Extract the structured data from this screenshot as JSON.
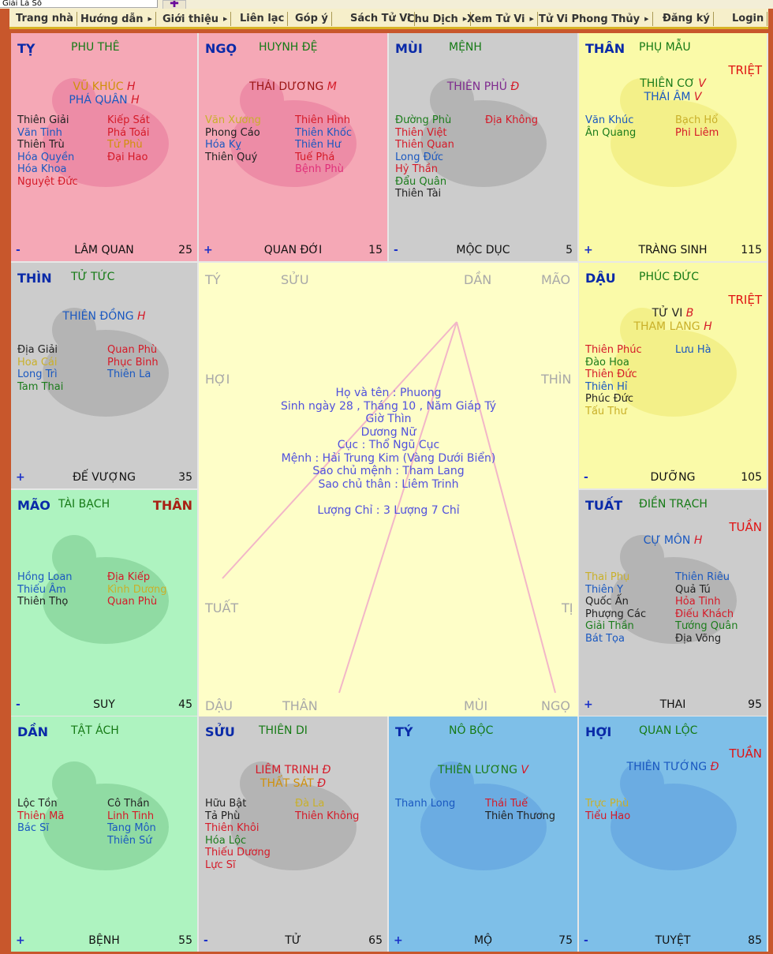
{
  "browser": {
    "tab_text": "Giải Lá Số",
    "new_tab": "✚"
  },
  "menu": [
    {
      "label": "Trang nhà",
      "arrow": false
    },
    {
      "label": "Hướng dẫn",
      "arrow": true
    },
    {
      "label": "Giới thiệu",
      "arrow": true
    },
    {
      "label": "Liên lạc",
      "arrow": false
    },
    {
      "label": "Góp ý",
      "arrow": false
    },
    {
      "label": "Sách Tử Vi",
      "arrow": false
    },
    {
      "label": "Chu Dịch",
      "arrow": true
    },
    {
      "label": "Xem Tử Vi",
      "arrow": true
    },
    {
      "label": "Tử Vi Phong Thủy",
      "arrow": true
    },
    {
      "label": "Đăng ký",
      "arrow": false
    },
    {
      "label": "Login",
      "arrow": false
    }
  ],
  "cells": [
    {
      "name": "TỴ",
      "title": "PHU THÊ",
      "special": "",
      "main": [
        {
          "t": "VŨ KHÚC",
          "m": "H",
          "c": "org"
        },
        {
          "t": "PHÁ QUÂN",
          "m": "H",
          "c": "blu"
        }
      ],
      "left": [
        {
          "t": "Thiên Giải",
          "c": "blk"
        },
        {
          "t": "Văn Tinh",
          "c": "blu"
        },
        {
          "t": "Thiên Trù",
          "c": "blk"
        },
        {
          "t": "Hóa Quyền",
          "c": "blu"
        },
        {
          "t": "Hóa Khoa",
          "c": "blu"
        },
        {
          "t": "Nguyệt Đức",
          "c": "red"
        }
      ],
      "right": [
        {
          "t": "Kiếp Sát",
          "c": "red"
        },
        {
          "t": "Phá Toái",
          "c": "red"
        },
        {
          "t": "Tử Phù",
          "c": "org"
        },
        {
          "t": "Đại Hao",
          "c": "red"
        }
      ],
      "sign": "-",
      "phase": "LÂM QUAN",
      "age": "25"
    },
    {
      "name": "NGỌ",
      "title": "HUYNH ĐỆ",
      "special": "",
      "main": [
        {
          "t": "THÁI DƯƠNG",
          "m": "M",
          "c": "dred"
        }
      ],
      "left": [
        {
          "t": "Văn Xương",
          "c": "ylw"
        },
        {
          "t": "Phong Cáo",
          "c": "blk"
        },
        {
          "t": "Hóa Kỵ",
          "c": "blu"
        },
        {
          "t": "Thiên Quý",
          "c": "blk"
        }
      ],
      "right": [
        {
          "t": "Thiên Hình",
          "c": "red"
        },
        {
          "t": "Thiên Khốc",
          "c": "blu"
        },
        {
          "t": "Thiên Hư",
          "c": "blu"
        },
        {
          "t": "Tuế Phá",
          "c": "red"
        },
        {
          "t": "Bệnh Phù",
          "c": "pnk"
        }
      ],
      "sign": "+",
      "phase": "QUAN ĐỚI",
      "age": "15"
    },
    {
      "name": "MÙI",
      "title": "MỆNH",
      "special": "",
      "main": [
        {
          "t": "THIÊN PHỦ",
          "m": "Đ",
          "c": "pur"
        }
      ],
      "left": [
        {
          "t": "Đường Phù",
          "c": "grn"
        },
        {
          "t": "Thiên Việt",
          "c": "red"
        },
        {
          "t": "Thiên Quan",
          "c": "red"
        },
        {
          "t": "Long Đức",
          "c": "blu"
        },
        {
          "t": "Hỷ Thần",
          "c": "red"
        },
        {
          "t": "Đẩu Quân",
          "c": "grn"
        },
        {
          "t": "Thiên Tài",
          "c": "blk"
        }
      ],
      "right": [
        {
          "t": "Địa Không",
          "c": "red"
        }
      ],
      "sign": "-",
      "phase": "MỘC DỤC",
      "age": "5"
    },
    {
      "name": "THÂN",
      "title": "PHỤ MẪU",
      "special": "TRIỆT",
      "main": [
        {
          "t": "THIÊN CƠ",
          "m": "V",
          "c": "grn"
        },
        {
          "t": "THÁI ÂM",
          "m": "V",
          "c": "blu"
        }
      ],
      "left": [
        {
          "t": "Văn Khúc",
          "c": "blu"
        },
        {
          "t": "Ân Quang",
          "c": "grn"
        }
      ],
      "right": [
        {
          "t": "Bạch Hổ",
          "c": "ylw"
        },
        {
          "t": "Phi Liêm",
          "c": "red"
        }
      ],
      "sign": "+",
      "phase": "TRÀNG SINH",
      "age": "115"
    },
    {
      "name": "THÌN",
      "title": "TỬ TỨC",
      "special": "",
      "main": [
        {
          "t": "THIÊN ĐỒNG",
          "m": "H",
          "c": "blu"
        }
      ],
      "left": [
        {
          "t": "Địa Giải",
          "c": "blk"
        },
        {
          "t": "Hoa Cái",
          "c": "ylw"
        },
        {
          "t": "Long Trì",
          "c": "blu"
        },
        {
          "t": "Tam Thai",
          "c": "grn"
        }
      ],
      "right": [
        {
          "t": "Quan Phù",
          "c": "red"
        },
        {
          "t": "Phục Binh",
          "c": "red"
        },
        {
          "t": "Thiên La",
          "c": "blu"
        }
      ],
      "sign": "+",
      "phase": "ĐẾ VƯỢNG",
      "age": "35"
    },
    {
      "name": "DẬU",
      "title": "PHÚC ĐỨC",
      "special": "TRIỆT",
      "main": [
        {
          "t": "TỬ VI",
          "m": "B",
          "c": "blk"
        },
        {
          "t": "THAM LANG",
          "m": "H",
          "c": "ylw"
        }
      ],
      "left": [
        {
          "t": "Thiên Phúc",
          "c": "red"
        },
        {
          "t": "Đào Hoa",
          "c": "grn"
        },
        {
          "t": "Thiên Đức",
          "c": "red"
        },
        {
          "t": "Thiên Hỉ",
          "c": "blu"
        },
        {
          "t": "Phúc Đức",
          "c": "blk"
        },
        {
          "t": "Tấu Thư",
          "c": "ylw"
        }
      ],
      "right": [
        {
          "t": "Lưu Hà",
          "c": "blu"
        }
      ],
      "sign": "-",
      "phase": "DƯỠNG",
      "age": "105"
    },
    {
      "name": "MÃO",
      "title": "TÀI BẠCH",
      "special": "THÂN",
      "main": [],
      "left": [
        {
          "t": "Hồng Loan",
          "c": "blu"
        },
        {
          "t": "Thiếu Âm",
          "c": "blu"
        },
        {
          "t": "Thiên Thọ",
          "c": "blk"
        }
      ],
      "right": [
        {
          "t": "Địa Kiếp",
          "c": "red"
        },
        {
          "t": "Kình Dương",
          "c": "ylw"
        },
        {
          "t": "Quan Phù",
          "c": "red"
        }
      ],
      "sign": "-",
      "phase": "SUY",
      "age": "45"
    },
    {
      "name": "TUẤT",
      "title": "ĐIỀN TRẠCH",
      "special": "TUẦN",
      "main": [
        {
          "t": "CỰ MÔN",
          "m": "H",
          "c": "blu"
        }
      ],
      "left": [
        {
          "t": "Thai Phụ",
          "c": "ylw"
        },
        {
          "t": "Thiên Y",
          "c": "blu"
        },
        {
          "t": "Quốc Ấn",
          "c": "blk"
        },
        {
          "t": "Phượng Các",
          "c": "blk"
        },
        {
          "t": "Giải Thần",
          "c": "grn"
        },
        {
          "t": "Bát Tọa",
          "c": "blu"
        }
      ],
      "right": [
        {
          "t": "Thiên Riêu",
          "c": "blu"
        },
        {
          "t": "Quả Tú",
          "c": "blk"
        },
        {
          "t": "Hỏa Tinh",
          "c": "red"
        },
        {
          "t": "Điếu Khách",
          "c": "red"
        },
        {
          "t": "Tướng Quân",
          "c": "grn"
        },
        {
          "t": "Địa Võng",
          "c": "blk"
        }
      ],
      "sign": "+",
      "phase": "THAI",
      "age": "95"
    },
    {
      "name": "DẦN",
      "title": "TẬT ÁCH",
      "special": "",
      "main": [],
      "left": [
        {
          "t": "Lộc Tồn",
          "c": "blk"
        },
        {
          "t": "Thiên Mã",
          "c": "red"
        },
        {
          "t": "Bác Sĩ",
          "c": "blu"
        }
      ],
      "right": [
        {
          "t": "Cô Thần",
          "c": "blk"
        },
        {
          "t": "Linh Tinh",
          "c": "red"
        },
        {
          "t": "Tang Môn",
          "c": "blu"
        },
        {
          "t": "Thiên Sứ",
          "c": "blu"
        }
      ],
      "sign": "+",
      "phase": "BỆNH",
      "age": "55"
    },
    {
      "name": "SỬU",
      "title": "THIÊN DI",
      "special": "",
      "main": [
        {
          "t": "LIÊM TRINH",
          "m": "Đ",
          "c": "red"
        },
        {
          "t": "THẤT SÁT",
          "m": "Đ",
          "c": "org"
        }
      ],
      "left": [
        {
          "t": "Hữu Bật",
          "c": "blk"
        },
        {
          "t": "Tả Phù",
          "c": "blk"
        },
        {
          "t": "Thiên Khôi",
          "c": "red"
        },
        {
          "t": "Hóa Lộc",
          "c": "grn"
        },
        {
          "t": "Thiếu Dương",
          "c": "red"
        },
        {
          "t": "Lực Sĩ",
          "c": "red"
        }
      ],
      "right": [
        {
          "t": "Đà La",
          "c": "ylw"
        },
        {
          "t": "Thiên Không",
          "c": "red"
        }
      ],
      "sign": "-",
      "phase": "TỬ",
      "age": "65"
    },
    {
      "name": "TÝ",
      "title": "NÔ BỘC",
      "special": "",
      "main": [
        {
          "t": "THIÊN LƯƠNG",
          "m": "V",
          "c": "grn"
        }
      ],
      "left": [
        {
          "t": "Thanh Long",
          "c": "blu"
        }
      ],
      "right": [
        {
          "t": "Thái Tuế",
          "c": "red"
        },
        {
          "t": "Thiên Thương",
          "c": "blk"
        }
      ],
      "sign": "+",
      "phase": "MỘ",
      "age": "75"
    },
    {
      "name": "HỢI",
      "title": "QUAN LỘC",
      "special": "TUẦN",
      "main": [
        {
          "t": "THIÊN TƯỚNG",
          "m": "Đ",
          "c": "blu"
        }
      ],
      "left": [
        {
          "t": "Trực Phù",
          "c": "ylw"
        },
        {
          "t": "Tiểu Hao",
          "c": "red"
        }
      ],
      "right": [],
      "sign": "-",
      "phase": "TUYỆT",
      "age": "85"
    }
  ],
  "center": {
    "branches": {
      "ty": "TÝ",
      "suu": "SỬU",
      "dan": "DẦN",
      "mao": "MÃO",
      "hoi": "HỢI",
      "thin": "THÌN",
      "tuat": "TUẤT",
      "ti": "TỊ",
      "dau": "DẬU",
      "than": "THÂN",
      "mui": "MÙI",
      "ngo": "NGỌ"
    },
    "info": [
      "Họ và tên : Phuong",
      "Sinh ngày 28 , Tháng 10 , Năm Giáp Tý",
      "Giờ Thìn",
      "Dương Nữ",
      "Cục : Thổ Ngũ Cục",
      "Mệnh : Hải Trung Kim (Vàng Dưới Biển)",
      "Sao chủ mệnh : Tham Lang",
      "Sao chủ thân : Liêm Trinh",
      "",
      "Lượng Chỉ : 3 Lượng 7 Chỉ"
    ]
  },
  "colors": {
    "pink": "#f5a8b6",
    "gray": "#cccccc",
    "yellow": "#fafaa8",
    "green": "#aef3c0",
    "blue": "#7ebfe8",
    "center": "#fefec8",
    "border": "#c8572c"
  }
}
